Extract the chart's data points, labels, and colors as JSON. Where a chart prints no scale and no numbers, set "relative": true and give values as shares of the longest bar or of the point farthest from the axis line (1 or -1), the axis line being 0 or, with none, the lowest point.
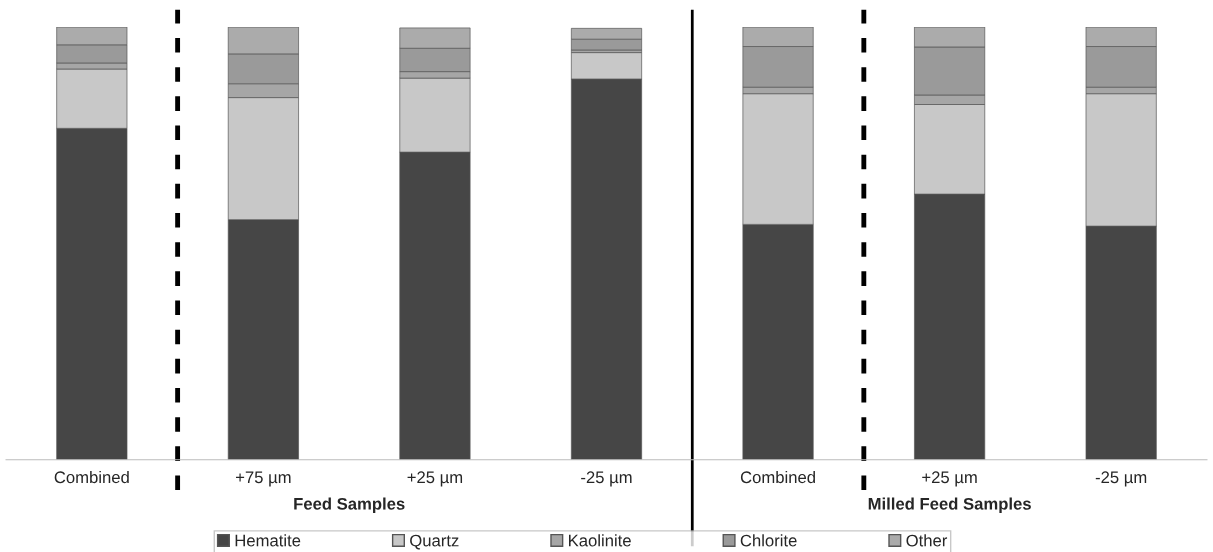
{
  "chart_data": {
    "type": "bar",
    "stacked": true,
    "relative": true,
    "legend": "bottom",
    "grid": false,
    "categories": [
      "Combined",
      "+75 µm",
      "+25 µm",
      "-25 µm",
      "Combined",
      "+25 µm",
      "-25 µm"
    ],
    "series": [
      {
        "name": "Hematite",
        "color": "#464646",
        "values": [
          0.766,
          0.555,
          0.711,
          0.88,
          0.544,
          0.614,
          0.54
        ]
      },
      {
        "name": "Quartz",
        "color": "#c8c8c8",
        "values": [
          0.137,
          0.282,
          0.171,
          0.061,
          0.302,
          0.207,
          0.306
        ]
      },
      {
        "name": "Kaolinite",
        "color": "#a6a6a6",
        "values": [
          0.014,
          0.032,
          0.015,
          0.006,
          0.015,
          0.022,
          0.015
        ]
      },
      {
        "name": "Chlorite",
        "color": "#9a9a9a",
        "values": [
          0.042,
          0.069,
          0.054,
          0.025,
          0.094,
          0.111,
          0.094
        ]
      },
      {
        "name": "Other",
        "color": "#ababab",
        "values": [
          0.041,
          0.062,
          0.047,
          0.025,
          0.045,
          0.046,
          0.045
        ]
      }
    ],
    "annotations": [
      "Feed Samples",
      "Milled Feed Samples"
    ]
  }
}
